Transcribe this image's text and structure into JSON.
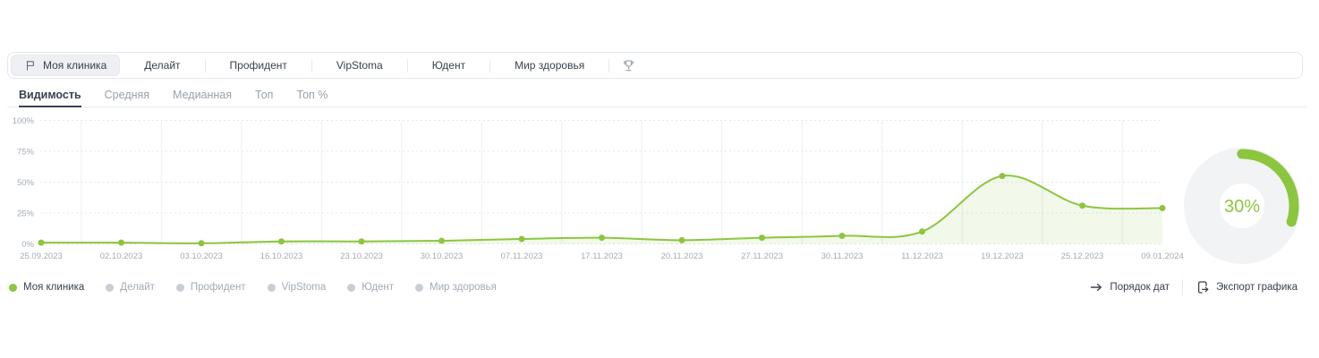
{
  "top_bar": {
    "tabs": [
      {
        "label": "Моя клиника",
        "active": true,
        "icon": "flag-icon"
      },
      {
        "label": "Делайт",
        "active": false
      },
      {
        "label": "Профидент",
        "active": false
      },
      {
        "label": "VipStoma",
        "active": false
      },
      {
        "label": "Юдент",
        "active": false
      },
      {
        "label": "Мир здоровья",
        "active": false
      }
    ],
    "trophy_icon": "trophy-icon"
  },
  "metric_tabs": [
    {
      "label": "Видимость",
      "active": true
    },
    {
      "label": "Средняя",
      "active": false
    },
    {
      "label": "Медианная",
      "active": false
    },
    {
      "label": "Топ",
      "active": false
    },
    {
      "label": "Топ %",
      "active": false
    }
  ],
  "chart_data": {
    "type": "line",
    "x": [
      "25.09.2023",
      "02.10.2023",
      "03.10.2023",
      "16.10.2023",
      "23.10.2023",
      "30.10.2023",
      "07.11.2023",
      "17.11.2023",
      "20.11.2023",
      "27.11.2023",
      "30.11.2023",
      "11.12.2023",
      "19.12.2023",
      "25.12.2023",
      "09.01.2024"
    ],
    "series": [
      {
        "name": "Моя клиника",
        "color": "#8cc63f",
        "values": [
          1,
          1,
          0.5,
          2,
          2,
          2.5,
          4,
          5,
          3,
          5,
          6.5,
          10,
          55,
          31,
          29
        ]
      }
    ],
    "y_ticks": [
      {
        "label": "0%",
        "value": 0
      },
      {
        "label": "25%",
        "value": 25
      },
      {
        "label": "50%",
        "value": 50
      },
      {
        "label": "75%",
        "value": 75
      },
      {
        "label": "100%",
        "value": 100
      }
    ],
    "ylim": [
      0,
      100
    ],
    "grid": true,
    "area_fill": true,
    "legend_position": "bottom-left"
  },
  "gauge": {
    "percent": 30,
    "value_label": "30%",
    "color": "#8cc63f",
    "track_color": "#f1f3f5"
  },
  "legend": [
    {
      "label": "Моя клиника",
      "active": true,
      "color": "#8cc63f"
    },
    {
      "label": "Делайт",
      "active": false,
      "color": "#c8ced5"
    },
    {
      "label": "Профидент",
      "active": false,
      "color": "#c8ced5"
    },
    {
      "label": "VipStoma",
      "active": false,
      "color": "#c8ced5"
    },
    {
      "label": "Юдент",
      "active": false,
      "color": "#c8ced5"
    },
    {
      "label": "Мир здоровья",
      "active": false,
      "color": "#c8ced5"
    }
  ],
  "actions": [
    {
      "label": "Порядок дат",
      "icon": "arrow-right-icon"
    },
    {
      "label": "Экспорт графика",
      "icon": "export-icon"
    }
  ],
  "colors": {
    "accent_green": "#8cc63f",
    "text_dark": "#39424e",
    "text_gray": "#98a1ab",
    "axis_text": "#a3acb6",
    "border": "#e5e8ec"
  }
}
